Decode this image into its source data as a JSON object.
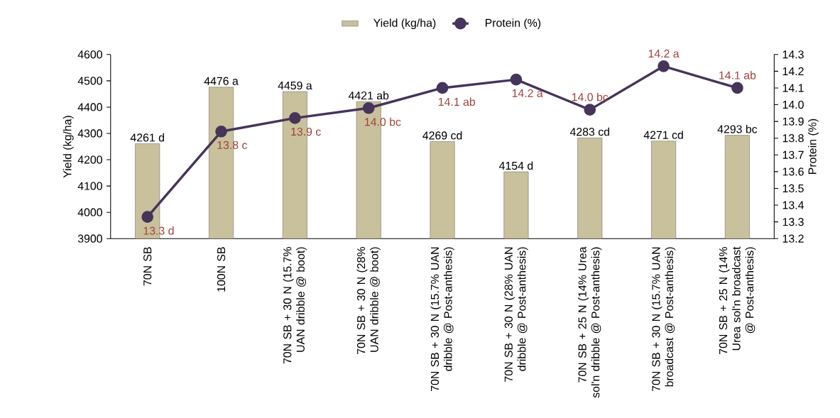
{
  "chart_data": {
    "type": "bar",
    "categories": [
      "70N SB",
      "100N SB",
      "70N SB + 30 N (15.7% UAN dribble @ boot)",
      "70N SB + 30 N (28% UAN dribble @ boot)",
      "70N SB + 30 N (15.7% UAN dribble @ Post-anthesis)",
      "70N SB + 30 N (28% UAN dribble @ Post-anthesis)",
      "70N SB + 25 N (14% Urea sol'n dribble @ Post-anthesis)",
      "70N SB + 30 N (15.7% UAN broadcast @ Post-anthesis)",
      "70N SB + 25 N (14% Urea sol'n broadcast @ Post-anthesis)"
    ],
    "series": [
      {
        "name": "Yield (kg/ha)",
        "color": "#c9c19b",
        "values": [
          4261,
          4476,
          4459,
          4421,
          4269,
          4154,
          4283,
          4271,
          4293
        ],
        "value_labels": [
          "4261 d",
          "4476 a",
          "4459 a",
          "4421 ab",
          "4269 cd",
          "4154 d",
          "4283 cd",
          "4271 cd",
          "4293 bc"
        ]
      },
      {
        "name": "Protein (%)",
        "type": "line",
        "axis": "y2",
        "color": "#46345a",
        "marker": "circle",
        "values": [
          13.33,
          13.84,
          13.92,
          13.98,
          14.1,
          14.15,
          13.97,
          14.23,
          14.1
        ],
        "value_labels": [
          "13.3 d",
          "13.8 c",
          "13.9 c",
          "14.0 bc",
          "14.1 ab",
          "14.2 a",
          "14.0 bc",
          "14.2 a",
          "14.1 ab"
        ]
      }
    ],
    "ylabel": "Yield (kg/ha)",
    "y2label": "Protein (%)",
    "ylim": [
      3900,
      4600
    ],
    "yticks": [
      3900,
      4000,
      4100,
      4200,
      4300,
      4400,
      4500,
      4600
    ],
    "y2lim": [
      13.2,
      14.3
    ],
    "y2ticks": [
      13.2,
      13.3,
      13.4,
      13.5,
      13.6,
      13.7,
      13.8,
      13.9,
      {
        "value": 14,
        "label": "14.0"
      },
      14.1,
      14.2,
      14.3
    ],
    "legend": "top",
    "grid": false
  }
}
